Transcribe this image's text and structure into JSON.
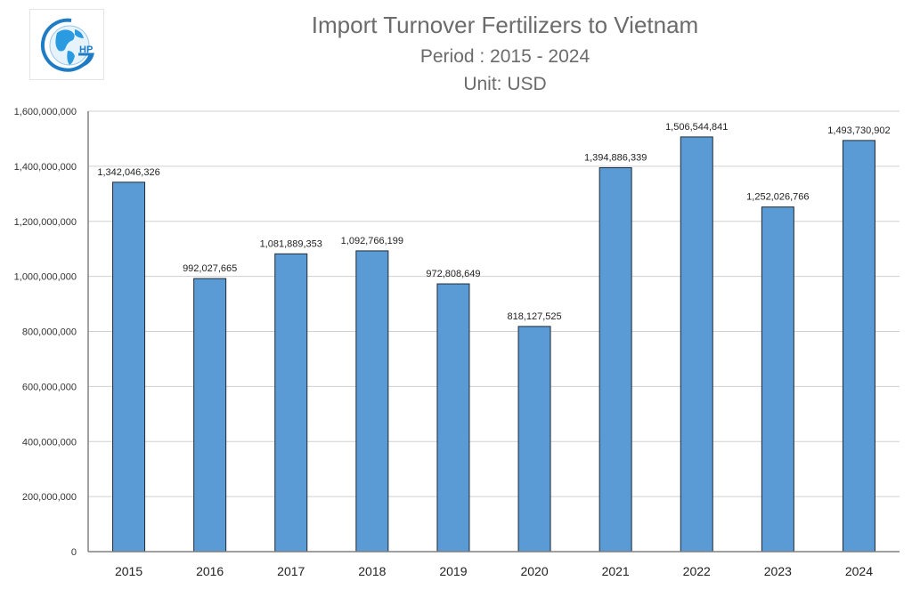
{
  "header": {
    "logo_text": "HP",
    "title": "Import Turnover Fertilizers to Vietnam",
    "subtitle": "Period : 2015 - 2024",
    "unit": "Unit: USD"
  },
  "colors": {
    "bar": "#5b9bd5",
    "bar_border": "#1f2a36",
    "grid": "#d0d0d0",
    "axis": "#808080",
    "title": "#6b6b6b"
  },
  "chart_data": {
    "type": "bar",
    "title": "Import Turnover Fertilizers to Vietnam",
    "subtitle": "Period : 2015 - 2024",
    "unit": "Unit: USD",
    "xlabel": "",
    "ylabel": "",
    "categories": [
      "2015",
      "2016",
      "2017",
      "2018",
      "2019",
      "2020",
      "2021",
      "2022",
      "2023",
      "2024"
    ],
    "values": [
      1342046326,
      992027665,
      1081889353,
      1092766199,
      972808649,
      818127525,
      1394886339,
      1506544841,
      1252026766,
      1493730902
    ],
    "value_labels": [
      "1,342,046,326",
      "992,027,665",
      "1,081,889,353",
      "1,092,766,199",
      "972,808,649",
      "818,127,525",
      "1,394,886,339",
      "1,506,544,841",
      "1,252,026,766",
      "1,493,730,902"
    ],
    "ylim": [
      0,
      1600000000
    ],
    "yticks": [
      0,
      200000000,
      400000000,
      600000000,
      800000000,
      1000000000,
      1200000000,
      1400000000,
      1600000000
    ],
    "ytick_labels": [
      "0",
      "200,000,000",
      "400,000,000",
      "600,000,000",
      "800,000,000",
      "1,000,000,000",
      "1,200,000,000",
      "1,400,000,000",
      "1,600,000,000"
    ],
    "grid": true,
    "legend": "none"
  }
}
